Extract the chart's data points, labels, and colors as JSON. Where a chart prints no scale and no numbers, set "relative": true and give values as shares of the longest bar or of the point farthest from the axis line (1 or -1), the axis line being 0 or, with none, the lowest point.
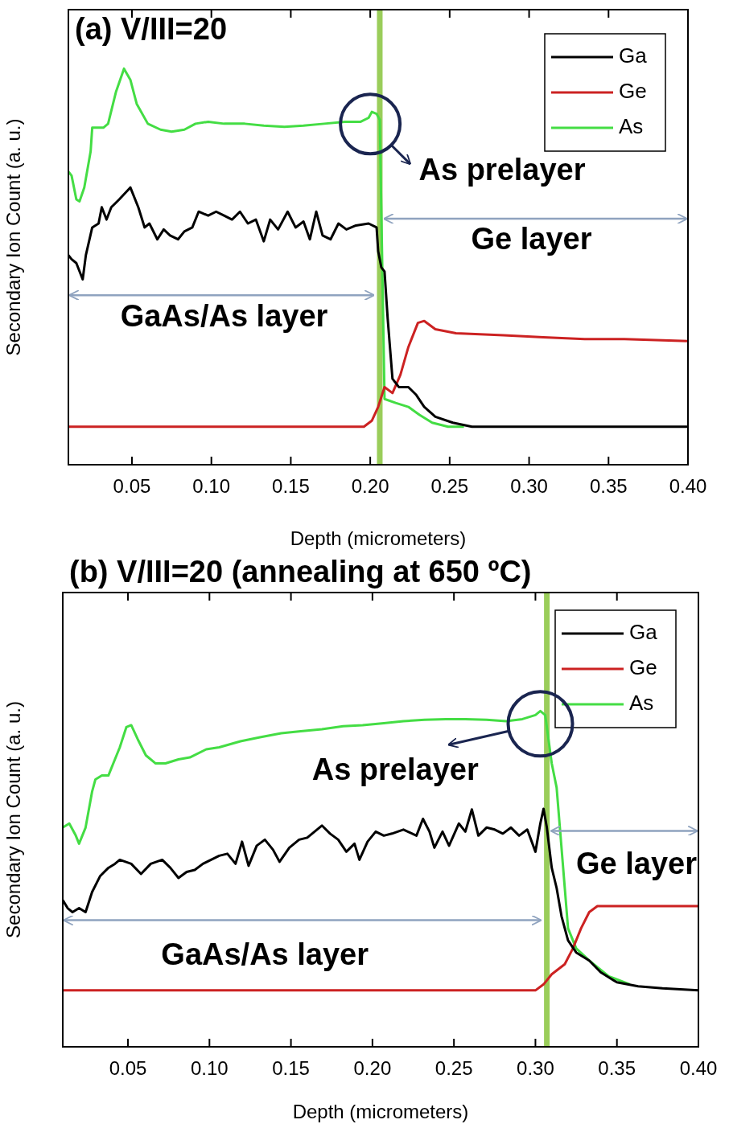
{
  "chart_data": [
    {
      "type": "line",
      "title": "(a) V/III=20",
      "xlabel": "Depth (micrometers)",
      "ylabel": "Secondary Ion Count (a. u.)",
      "relative": true,
      "xlim": [
        0.01,
        0.4
      ],
      "xticks": [
        {
          "value": 0.05,
          "label": "0.05"
        },
        {
          "value": 0.1,
          "label": "0.10"
        },
        {
          "value": 0.15,
          "label": "0.15"
        },
        {
          "value": 0.2,
          "label": "0.20"
        },
        {
          "value": 0.25,
          "label": "0.25"
        },
        {
          "value": 0.3,
          "label": "0.30"
        },
        {
          "value": 0.35,
          "label": "0.35"
        },
        {
          "value": 0.4,
          "label": "0.40"
        }
      ],
      "grid": false,
      "legend": "top right",
      "tick_labels": "x",
      "marker": "none",
      "line_style": "solid",
      "ref_lines": [
        {
          "axis": "x",
          "value": 0.206,
          "label": null,
          "color": "#9acd5a"
        }
      ],
      "annotations": [
        "As prelayer",
        "Ge layer",
        "GaAs/As layer"
      ],
      "series": [
        {
          "name": "Ga",
          "color": "#000000",
          "x": [
            0.01,
            0.012,
            0.015,
            0.019,
            0.021,
            0.025,
            0.029,
            0.031,
            0.034,
            0.037,
            0.042,
            0.049,
            0.054,
            0.058,
            0.061,
            0.066,
            0.07,
            0.074,
            0.079,
            0.083,
            0.088,
            0.092,
            0.098,
            0.103,
            0.108,
            0.113,
            0.118,
            0.123,
            0.128,
            0.133,
            0.137,
            0.142,
            0.148,
            0.153,
            0.158,
            0.162,
            0.166,
            0.17,
            0.175,
            0.18,
            0.185,
            0.191,
            0.199,
            0.204,
            0.205,
            0.207,
            0.209,
            0.211,
            0.214,
            0.218,
            0.224,
            0.229,
            0.234,
            0.241,
            0.252,
            0.264,
            0.4
          ],
          "values": [
            0.529,
            0.519,
            0.509,
            0.468,
            0.529,
            0.599,
            0.609,
            0.65,
            0.619,
            0.65,
            0.67,
            0.7,
            0.65,
            0.599,
            0.609,
            0.569,
            0.594,
            0.579,
            0.569,
            0.589,
            0.599,
            0.639,
            0.629,
            0.639,
            0.629,
            0.619,
            0.639,
            0.609,
            0.619,
            0.564,
            0.619,
            0.594,
            0.639,
            0.599,
            0.614,
            0.569,
            0.639,
            0.579,
            0.569,
            0.609,
            0.594,
            0.604,
            0.609,
            0.599,
            0.539,
            0.498,
            0.488,
            0.368,
            0.217,
            0.196,
            0.196,
            0.176,
            0.146,
            0.121,
            0.106,
            0.096,
            0.096
          ]
        },
        {
          "name": "Ge",
          "color": "#cc2222",
          "x": [
            0.01,
            0.196,
            0.201,
            0.205,
            0.209,
            0.214,
            0.219,
            0.224,
            0.23,
            0.234,
            0.241,
            0.254,
            0.284,
            0.309,
            0.335,
            0.36,
            0.4
          ],
          "values": [
            0.096,
            0.096,
            0.111,
            0.146,
            0.196,
            0.181,
            0.227,
            0.297,
            0.358,
            0.363,
            0.342,
            0.332,
            0.327,
            0.322,
            0.317,
            0.317,
            0.312
          ]
        },
        {
          "name": "As",
          "color": "#44dd44",
          "x": [
            0.01,
            0.012,
            0.015,
            0.017,
            0.02,
            0.024,
            0.025,
            0.032,
            0.035,
            0.04,
            0.045,
            0.049,
            0.053,
            0.06,
            0.068,
            0.075,
            0.083,
            0.09,
            0.098,
            0.108,
            0.121,
            0.133,
            0.146,
            0.158,
            0.171,
            0.184,
            0.194,
            0.199,
            0.201,
            0.204,
            0.206,
            0.209,
            0.216,
            0.224,
            0.231,
            0.239,
            0.249,
            0.259
          ],
          "values": [
            0.74,
            0.73,
            0.67,
            0.665,
            0.7,
            0.791,
            0.851,
            0.851,
            0.861,
            0.942,
            1.0,
            0.972,
            0.911,
            0.861,
            0.846,
            0.841,
            0.846,
            0.861,
            0.866,
            0.861,
            0.861,
            0.856,
            0.853,
            0.856,
            0.861,
            0.866,
            0.866,
            0.876,
            0.891,
            0.886,
            0.871,
            0.166,
            0.156,
            0.146,
            0.126,
            0.106,
            0.096,
            0.096
          ]
        }
      ]
    },
    {
      "type": "line",
      "title": "(b) V/III=20 (annealing at 650 ºC)",
      "xlabel": "Depth (micrometers)",
      "ylabel": "Secondary Ion Count (a. u.)",
      "relative": true,
      "xlim": [
        0.01,
        0.4
      ],
      "xticks": [
        {
          "value": 0.05,
          "label": "0.05"
        },
        {
          "value": 0.1,
          "label": "0.10"
        },
        {
          "value": 0.15,
          "label": "0.15"
        },
        {
          "value": 0.2,
          "label": "0.20"
        },
        {
          "value": 0.25,
          "label": "0.25"
        },
        {
          "value": 0.3,
          "label": "0.30"
        },
        {
          "value": 0.35,
          "label": "0.35"
        },
        {
          "value": 0.4,
          "label": "0.40"
        }
      ],
      "grid": false,
      "legend": "top right",
      "tick_labels": "x",
      "marker": "none",
      "line_style": "solid",
      "ref_lines": [
        {
          "axis": "x",
          "value": 0.307,
          "label": null,
          "color": "#9acd5a"
        }
      ],
      "annotations": [
        "As prelayer",
        "Ge layer",
        "GaAs/As layer"
      ],
      "series": [
        {
          "name": "Ga",
          "color": "#000000",
          "x": [
            0.01,
            0.013,
            0.016,
            0.02,
            0.024,
            0.028,
            0.033,
            0.038,
            0.042,
            0.045,
            0.052,
            0.058,
            0.064,
            0.071,
            0.076,
            0.081,
            0.086,
            0.091,
            0.096,
            0.101,
            0.106,
            0.111,
            0.116,
            0.12,
            0.124,
            0.129,
            0.134,
            0.139,
            0.143,
            0.149,
            0.155,
            0.16,
            0.169,
            0.174,
            0.179,
            0.184,
            0.189,
            0.192,
            0.197,
            0.202,
            0.207,
            0.212,
            0.219,
            0.227,
            0.231,
            0.235,
            0.238,
            0.243,
            0.247,
            0.253,
            0.257,
            0.261,
            0.265,
            0.27,
            0.275,
            0.28,
            0.285,
            0.29,
            0.295,
            0.3,
            0.303,
            0.305,
            0.307,
            0.31,
            0.313,
            0.316,
            0.32,
            0.325,
            0.333,
            0.34,
            0.35,
            0.363,
            0.378,
            0.4
          ],
          "values": [
            0.437,
            0.413,
            0.401,
            0.413,
            0.401,
            0.461,
            0.509,
            0.533,
            0.545,
            0.557,
            0.545,
            0.515,
            0.545,
            0.557,
            0.533,
            0.503,
            0.521,
            0.527,
            0.545,
            0.557,
            0.569,
            0.575,
            0.545,
            0.611,
            0.539,
            0.599,
            0.617,
            0.587,
            0.551,
            0.593,
            0.617,
            0.623,
            0.659,
            0.635,
            0.617,
            0.581,
            0.605,
            0.557,
            0.611,
            0.641,
            0.629,
            0.635,
            0.647,
            0.629,
            0.679,
            0.641,
            0.593,
            0.641,
            0.599,
            0.665,
            0.641,
            0.707,
            0.629,
            0.653,
            0.647,
            0.635,
            0.653,
            0.629,
            0.647,
            0.581,
            0.665,
            0.709,
            0.653,
            0.533,
            0.473,
            0.389,
            0.317,
            0.281,
            0.257,
            0.222,
            0.192,
            0.18,
            0.174,
            0.168
          ]
        },
        {
          "name": "Ge",
          "color": "#cc2222",
          "x": [
            0.01,
            0.3,
            0.305,
            0.31,
            0.318,
            0.323,
            0.328,
            0.333,
            0.338,
            0.358,
            0.4
          ],
          "values": [
            0.168,
            0.168,
            0.186,
            0.216,
            0.246,
            0.293,
            0.353,
            0.401,
            0.419,
            0.419,
            0.419
          ]
        },
        {
          "name": "As",
          "color": "#44dd44",
          "x": [
            0.01,
            0.014,
            0.018,
            0.02,
            0.024,
            0.028,
            0.03,
            0.034,
            0.038,
            0.042,
            0.045,
            0.049,
            0.052,
            0.056,
            0.061,
            0.067,
            0.073,
            0.081,
            0.088,
            0.098,
            0.106,
            0.119,
            0.131,
            0.144,
            0.156,
            0.169,
            0.182,
            0.194,
            0.207,
            0.219,
            0.232,
            0.245,
            0.257,
            0.27,
            0.282,
            0.292,
            0.3,
            0.303,
            0.306,
            0.31,
            0.313,
            0.315,
            0.318,
            0.32,
            0.325,
            0.333,
            0.345,
            0.358
          ],
          "values": [
            0.653,
            0.665,
            0.629,
            0.605,
            0.653,
            0.76,
            0.796,
            0.808,
            0.808,
            0.856,
            0.892,
            0.952,
            0.958,
            0.916,
            0.868,
            0.844,
            0.844,
            0.856,
            0.862,
            0.886,
            0.892,
            0.91,
            0.922,
            0.934,
            0.94,
            0.946,
            0.955,
            0.958,
            0.964,
            0.97,
            0.974,
            0.976,
            0.976,
            0.974,
            0.97,
            0.976,
            0.988,
            1.0,
            0.988,
            0.844,
            0.772,
            0.653,
            0.473,
            0.353,
            0.293,
            0.257,
            0.21,
            0.186
          ]
        }
      ]
    }
  ]
}
